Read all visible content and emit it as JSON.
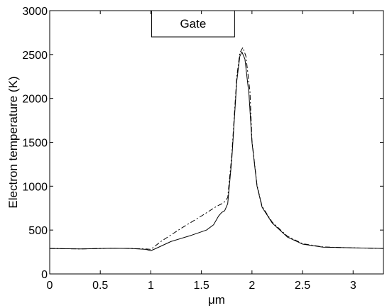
{
  "chart_data": {
    "type": "line",
    "title": "",
    "xlabel": "μm",
    "ylabel": "Electron temperature (K)",
    "xlim": [
      0,
      3.3
    ],
    "ylim": [
      0,
      3000
    ],
    "xticks": [
      0,
      0.5,
      1,
      1.5,
      2,
      2.5,
      3
    ],
    "xtick_labels": [
      "0",
      "0.5",
      "1",
      "1.5",
      "2",
      "2.5",
      "3"
    ],
    "yticks": [
      0,
      500,
      1000,
      1500,
      2000,
      2500,
      3000
    ],
    "ytick_labels": [
      "0",
      "500",
      "1000",
      "1500",
      "2000",
      "2500",
      "3000"
    ],
    "grid": false,
    "annotation": {
      "text": "Gate",
      "x_range": [
        1.0,
        1.8
      ],
      "y_range": [
        2690,
        3000
      ]
    },
    "series": [
      {
        "style": "solid",
        "color": "#000000",
        "x": [
          0,
          0.3,
          0.6,
          0.8,
          0.95,
          1.0,
          1.05,
          1.2,
          1.4,
          1.55,
          1.62,
          1.67,
          1.7,
          1.73,
          1.76,
          1.8,
          1.85,
          1.88,
          1.9,
          1.93,
          1.97,
          2.0,
          2.05,
          2.1,
          2.2,
          2.35,
          2.5,
          2.7,
          2.9,
          3.1,
          3.3
        ],
        "y": [
          290,
          285,
          292,
          290,
          280,
          265,
          290,
          370,
          440,
          500,
          560,
          660,
          700,
          720,
          800,
          1300,
          2200,
          2480,
          2530,
          2450,
          2050,
          1500,
          1000,
          760,
          580,
          420,
          340,
          305,
          300,
          295,
          290
        ]
      },
      {
        "style": "dashdot",
        "color": "#000000",
        "x": [
          0,
          0.3,
          0.6,
          0.8,
          0.95,
          1.0,
          1.1,
          1.3,
          1.5,
          1.65,
          1.72,
          1.76,
          1.8,
          1.85,
          1.88,
          1.91,
          1.94,
          1.98,
          2.0,
          2.05,
          2.1,
          2.2,
          2.35,
          2.5,
          2.7,
          2.9,
          3.1,
          3.3
        ],
        "y": [
          290,
          285,
          292,
          290,
          285,
          280,
          370,
          520,
          660,
          770,
          810,
          870,
          1350,
          2250,
          2520,
          2580,
          2480,
          2080,
          1520,
          1010,
          770,
          590,
          430,
          345,
          308,
          300,
          295,
          290
        ]
      }
    ]
  }
}
